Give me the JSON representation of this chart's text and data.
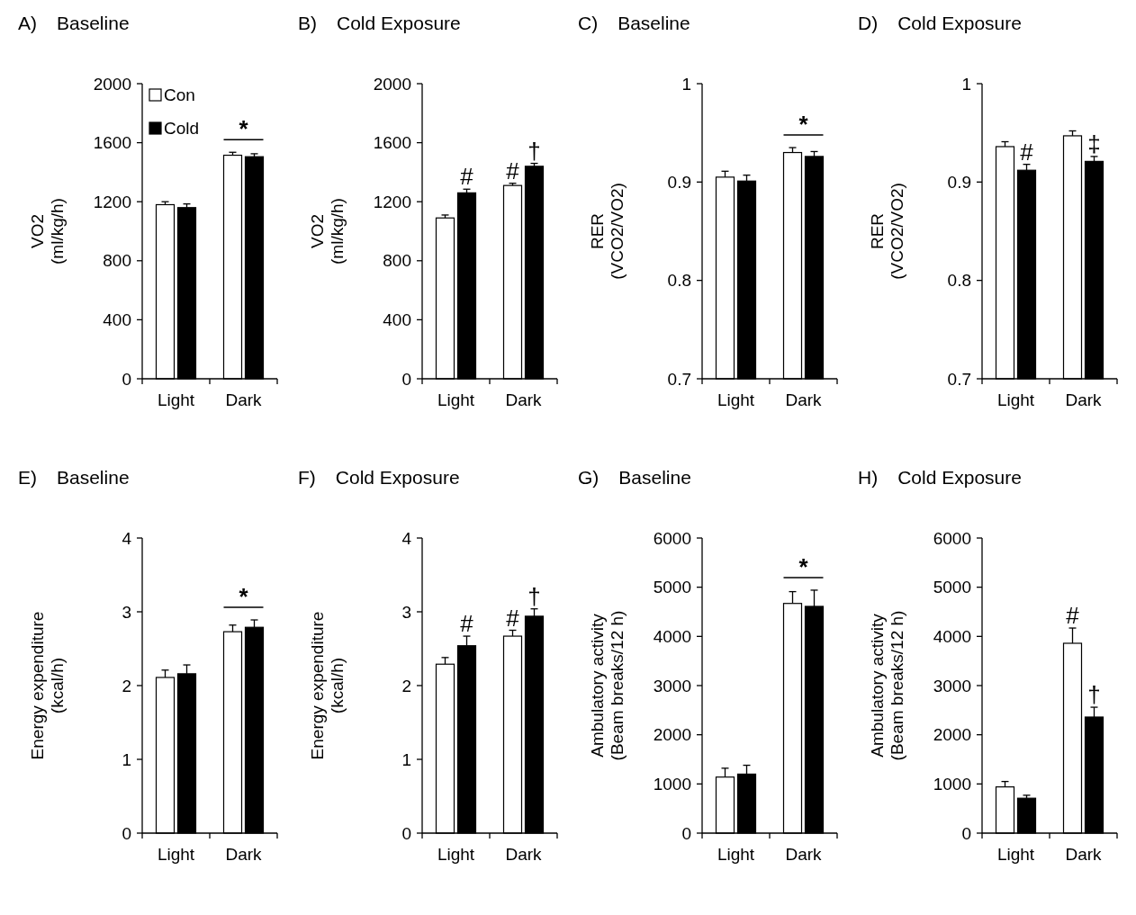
{
  "chart_data": [
    {
      "type": "bar",
      "title": "A) Baseline",
      "ylabel": "VO2\n(ml/kg/h)",
      "categories": [
        "Light",
        "Dark"
      ],
      "ylim": [
        0,
        2000
      ],
      "yticks": [
        0,
        400,
        800,
        1200,
        1600,
        2000
      ],
      "legend": "top left",
      "grid": false,
      "series": [
        {
          "name": "Con",
          "color": "#ffffff",
          "values": [
            1180,
            1515
          ],
          "errors": [
            20,
            20
          ]
        },
        {
          "name": "Cold",
          "color": "#000000",
          "values": [
            1160,
            1505
          ],
          "errors": [
            25,
            20
          ]
        }
      ],
      "annotations": [
        "*"
      ]
    },
    {
      "type": "bar",
      "title": "B) Cold Exposure",
      "ylabel": "VO2\n(ml/kg/h)",
      "categories": [
        "Light",
        "Dark"
      ],
      "ylim": [
        0,
        2000
      ],
      "yticks": [
        0,
        400,
        800,
        1200,
        1600,
        2000
      ],
      "legend": false,
      "grid": false,
      "series": [
        {
          "color": "#ffffff",
          "values": [
            1090,
            1310
          ],
          "errors": [
            20,
            15
          ]
        },
        {
          "color": "#000000",
          "values": [
            1260,
            1440
          ],
          "errors": [
            25,
            20
          ]
        }
      ],
      "annotations": [
        {
          "text": "#",
          "x": "Light",
          "y": 1260
        },
        {
          "text": "#",
          "x": "Dark",
          "y": 1310
        },
        {
          "text": "†",
          "x": "Dark",
          "y": 1440
        }
      ]
    },
    {
      "type": "bar",
      "title": "C) Baseline",
      "ylabel": "RER\n(VCO2/VO2)",
      "categories": [
        "Light",
        "Dark"
      ],
      "ylim": [
        0.7,
        1
      ],
      "yticks": [
        0.7,
        0.8,
        0.9,
        1
      ],
      "legend": false,
      "grid": false,
      "series": [
        {
          "color": "#ffffff",
          "values": [
            0.905,
            0.93
          ],
          "errors": [
            0.006,
            0.005
          ]
        },
        {
          "color": "#000000",
          "values": [
            0.901,
            0.926
          ],
          "errors": [
            0.006,
            0.005
          ]
        }
      ],
      "annotations": [
        "*"
      ]
    },
    {
      "type": "bar",
      "title": "D) Cold Exposure",
      "ylabel": "RER\n(VCO2/VO2)",
      "categories": [
        "Light",
        "Dark"
      ],
      "ylim": [
        0.7,
        1
      ],
      "yticks": [
        0.7,
        0.8,
        0.9,
        1
      ],
      "legend": false,
      "grid": false,
      "series": [
        {
          "color": "#ffffff",
          "values": [
            0.936,
            0.947
          ],
          "errors": [
            0.005,
            0.005
          ]
        },
        {
          "color": "#000000",
          "values": [
            0.912,
            0.921
          ],
          "errors": [
            0.006,
            0.005
          ]
        }
      ],
      "annotations": [
        {
          "text": "#",
          "x": "Light",
          "y": 0.912
        },
        {
          "text": "‡",
          "x": "Dark",
          "y": 0.921
        }
      ]
    },
    {
      "type": "bar",
      "title": "E) Baseline",
      "ylabel": "Energy expenditure\n(kcal/h)",
      "categories": [
        "Light",
        "Dark"
      ],
      "ylim": [
        0,
        4
      ],
      "yticks": [
        0,
        1,
        2,
        3,
        4
      ],
      "legend": false,
      "grid": false,
      "series": [
        {
          "color": "#ffffff",
          "values": [
            2.11,
            2.73
          ],
          "errors": [
            0.1,
            0.09
          ]
        },
        {
          "color": "#000000",
          "values": [
            2.16,
            2.79
          ],
          "errors": [
            0.12,
            0.1
          ]
        }
      ],
      "annotations": [
        "*"
      ]
    },
    {
      "type": "bar",
      "title": "F) Cold Exposure",
      "ylabel": "Energy expenditure\n(kcal/h)",
      "categories": [
        "Light",
        "Dark"
      ],
      "ylim": [
        0,
        4
      ],
      "yticks": [
        0,
        1,
        2,
        3,
        4
      ],
      "legend": false,
      "grid": false,
      "series": [
        {
          "color": "#ffffff",
          "values": [
            2.29,
            2.67
          ],
          "errors": [
            0.09,
            0.08
          ]
        },
        {
          "color": "#000000",
          "values": [
            2.54,
            2.94
          ],
          "errors": [
            0.13,
            0.1
          ]
        }
      ],
      "annotations": [
        {
          "text": "#",
          "x": "Light",
          "y": 2.54
        },
        {
          "text": "#",
          "x": "Dark",
          "y": 2.67
        },
        {
          "text": "†",
          "x": "Dark",
          "y": 2.94
        }
      ]
    },
    {
      "type": "bar",
      "title": "G) Baseline",
      "ylabel": "Ambulatory activity\n(Beam breaks/12 h)",
      "categories": [
        "Light",
        "Dark"
      ],
      "ylim": [
        0,
        6000
      ],
      "yticks": [
        0,
        1000,
        2000,
        3000,
        4000,
        5000,
        6000
      ],
      "legend": false,
      "grid": false,
      "series": [
        {
          "color": "#ffffff",
          "values": [
            1140,
            4670
          ],
          "errors": [
            180,
            240
          ]
        },
        {
          "color": "#000000",
          "values": [
            1200,
            4610
          ],
          "errors": [
            180,
            330
          ]
        }
      ],
      "annotations": [
        "*"
      ]
    },
    {
      "type": "bar",
      "title": "H) Cold Exposure",
      "ylabel": "Ambulatory activity\n(Beam breaks/12 h)",
      "categories": [
        "Light",
        "Dark"
      ],
      "ylim": [
        0,
        6000
      ],
      "yticks": [
        0,
        1000,
        2000,
        3000,
        4000,
        5000,
        6000
      ],
      "legend": false,
      "grid": false,
      "series": [
        {
          "color": "#ffffff",
          "values": [
            940,
            3860
          ],
          "errors": [
            110,
            310
          ]
        },
        {
          "color": "#000000",
          "values": [
            710,
            2360
          ],
          "errors": [
            60,
            200
          ]
        }
      ],
      "annotations": [
        {
          "text": "#",
          "x": "Dark",
          "y": 3860
        },
        {
          "text": "†",
          "x": "Dark",
          "y": 2360
        }
      ]
    }
  ]
}
